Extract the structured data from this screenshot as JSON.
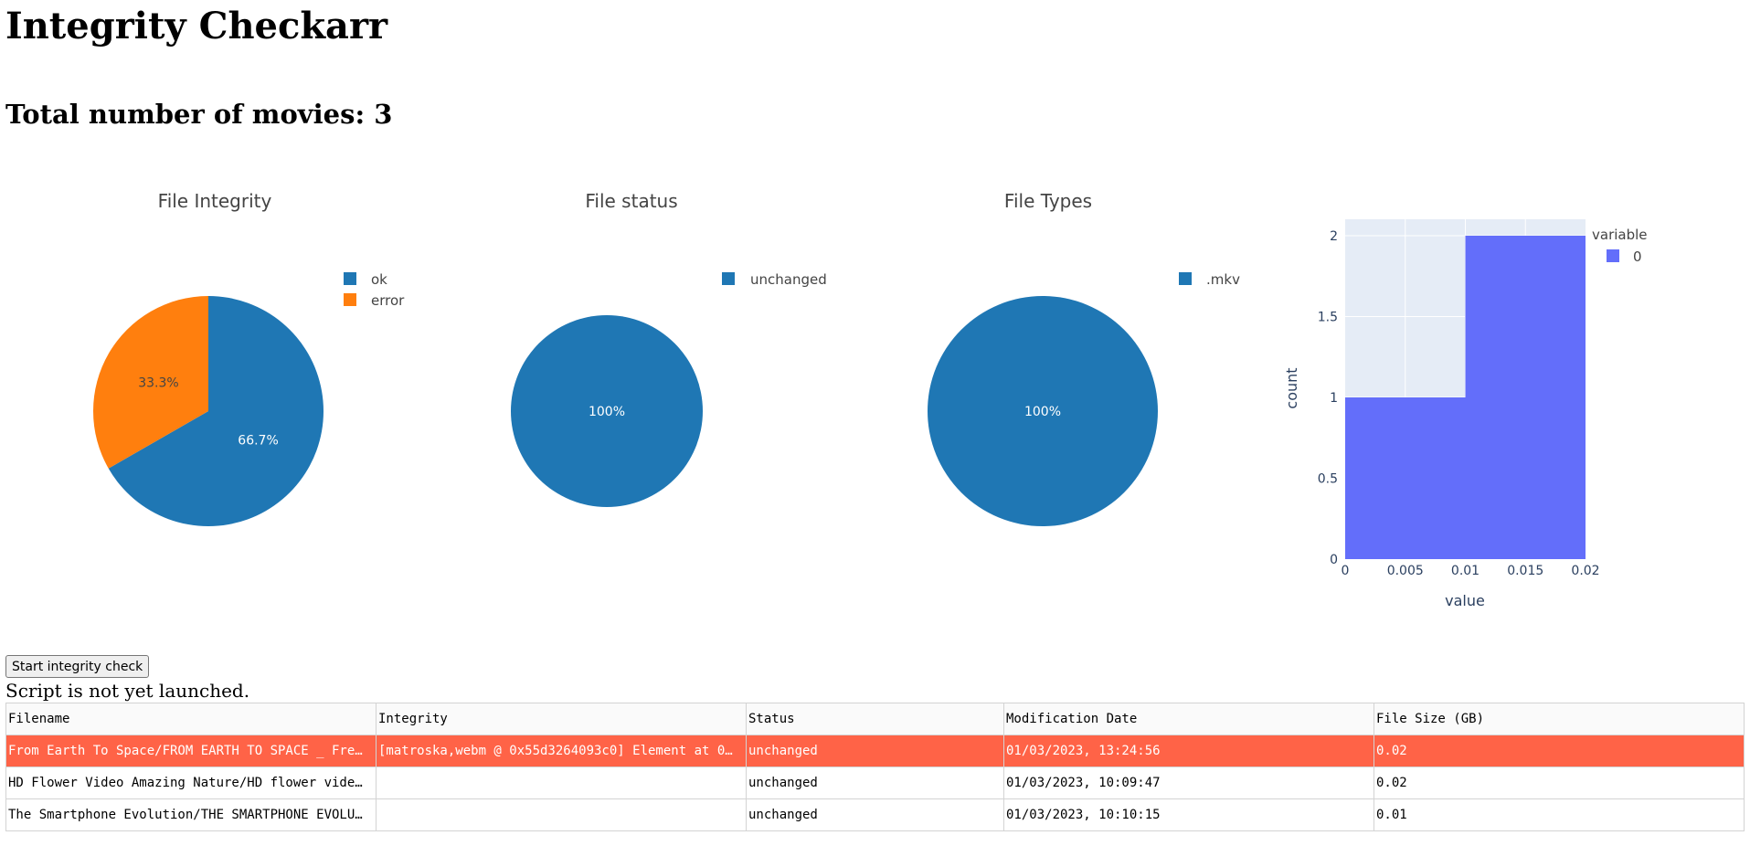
{
  "page": {
    "title": "Integrity Checkarr",
    "total_movies": "Total number of movies: 3"
  },
  "chart_data": [
    {
      "type": "pie",
      "title": "File Integrity",
      "labels": [
        "ok",
        "error"
      ],
      "values": [
        66.7,
        33.3
      ],
      "slice_labels": [
        "66.7%",
        "33.3%"
      ],
      "colors": [
        "#1f77b4",
        "#ff7f0e"
      ],
      "legend": "top-right"
    },
    {
      "type": "pie",
      "title": "File status",
      "labels": [
        "unchanged"
      ],
      "values": [
        100
      ],
      "slice_labels": [
        "100%"
      ],
      "colors": [
        "#1f77b4"
      ],
      "legend": "top-right"
    },
    {
      "type": "pie",
      "title": "File Types",
      "labels": [
        ".mkv"
      ],
      "values": [
        100
      ],
      "slice_labels": [
        "100%"
      ],
      "colors": [
        "#1f77b4"
      ],
      "legend": "top-right"
    },
    {
      "type": "bar",
      "title": "",
      "xlabel": "value",
      "ylabel": "count",
      "x_bins": [
        [
          0,
          0.01
        ],
        [
          0.01,
          0.02
        ]
      ],
      "values": [
        1,
        2
      ],
      "xlim": [
        0,
        0.02
      ],
      "ylim": [
        0,
        2
      ],
      "xticks": [
        "0",
        "0.005",
        "0.01",
        "0.015",
        "0.02"
      ],
      "yticks": [
        "0",
        "0.5",
        "1",
        "1.5",
        "2"
      ],
      "legend_title": "variable",
      "series": [
        {
          "name": "0",
          "color": "#636efa"
        }
      ],
      "plot_background": "#e5ecf6",
      "grid": true,
      "legend": "top-right"
    }
  ],
  "controls": {
    "start_button": "Start integrity check",
    "script_status": "Script is not yet launched."
  },
  "table": {
    "columns": [
      "Filename",
      "Integrity",
      "Status",
      "Modification Date",
      "File Size (GB)"
    ],
    "rows": [
      {
        "filename": "From Earth To Space/FROM EARTH TO SPACE _ Fre…",
        "integrity": "[matroska,webm @ 0x55d3264093c0] Element at 0…",
        "status": "unchanged",
        "modified": "01/03/2023, 13:24:56",
        "size": "0.02",
        "highlight": true
      },
      {
        "filename": "HD Flower Video Amazing Nature/HD flower vide…",
        "integrity": "",
        "status": "unchanged",
        "modified": "01/03/2023, 10:09:47",
        "size": "0.02",
        "highlight": false
      },
      {
        "filename": "The Smartphone Evolution/THE SMARTPHONE EVOLU…",
        "integrity": "",
        "status": "unchanged",
        "modified": "01/03/2023, 10:10:15",
        "size": "0.01",
        "highlight": false
      }
    ],
    "highlight_color": "#ff6347"
  }
}
